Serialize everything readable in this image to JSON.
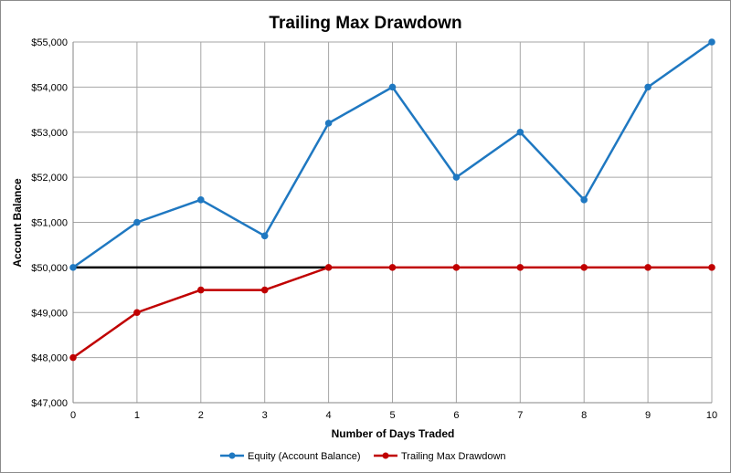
{
  "chart_data": {
    "type": "line",
    "title": "Trailing Max Drawdown",
    "xlabel": "Number of Days Traded",
    "ylabel": "Account Balance",
    "x": [
      0,
      1,
      2,
      3,
      4,
      5,
      6,
      7,
      8,
      9,
      10
    ],
    "xlim": [
      0,
      10
    ],
    "ylim": [
      47000,
      55000
    ],
    "x_ticks": [
      "0",
      "1",
      "2",
      "3",
      "4",
      "5",
      "6",
      "7",
      "8",
      "9",
      "10"
    ],
    "y_ticks": [
      "$47,000",
      "$48,000",
      "$49,000",
      "$50,000",
      "$51,000",
      "$52,000",
      "$53,000",
      "$54,000",
      "$55,000"
    ],
    "y_tick_values": [
      47000,
      48000,
      49000,
      50000,
      51000,
      52000,
      53000,
      54000,
      55000
    ],
    "grid": true,
    "legend_position": "bottom",
    "series": [
      {
        "name": "Equity (Account Balance)",
        "color": "#1f78c1",
        "values": [
          50000,
          51000,
          51500,
          50700,
          53200,
          54000,
          52000,
          53000,
          51500,
          54000,
          55000
        ]
      },
      {
        "name": "Trailing Max Drawdown",
        "color": "#c00000",
        "values": [
          48000,
          49000,
          49500,
          49500,
          50000,
          50000,
          50000,
          50000,
          50000,
          50000,
          50000
        ]
      }
    ],
    "reference_line": {
      "color": "#000000",
      "x": [
        0,
        4
      ],
      "y": [
        50000,
        50000
      ]
    }
  }
}
